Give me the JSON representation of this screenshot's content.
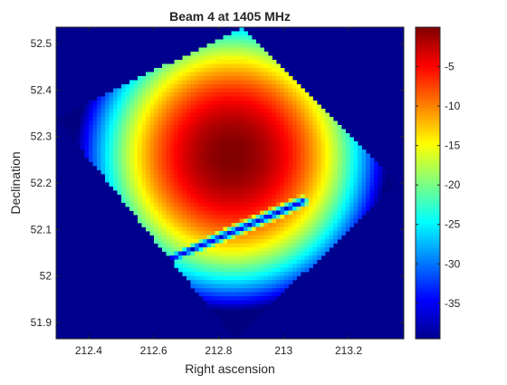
{
  "chart_data": {
    "type": "heatmap",
    "title": "Beam 4 at 1405 MHz",
    "xlabel": "Right ascension",
    "ylabel": "Declination",
    "xlim": [
      212.3,
      213.37
    ],
    "ylim": [
      51.865,
      52.535
    ],
    "x_ticks": [
      212.4,
      212.6,
      212.8,
      213,
      213.2
    ],
    "x_tick_labels": [
      "212.4",
      "212.6",
      "212.8",
      "213",
      "213.2"
    ],
    "y_ticks": [
      51.9,
      52,
      52.1,
      52.2,
      52.3,
      52.4,
      52.5
    ],
    "y_tick_labels": [
      "51.9",
      "52",
      "52.1",
      "52.2",
      "52.3",
      "52.4",
      "52.5"
    ],
    "colorbar": {
      "colormap": "jet",
      "range": [
        -39.5,
        0
      ],
      "ticks": [
        -5,
        -10,
        -15,
        -20,
        -25,
        -30,
        -35
      ],
      "tick_labels": [
        "-5",
        "-10",
        "-15",
        "-20",
        "-25",
        "-30",
        "-35"
      ]
    },
    "background_color": "#00008f",
    "beam_peak": {
      "ra": 212.84,
      "dec": 52.26,
      "value": 0
    },
    "footprint_corners": [
      {
        "ra": 212.3,
        "dec": 52.34
      },
      {
        "ra": 212.87,
        "dec": 52.532
      },
      {
        "ra": 213.35,
        "dec": 52.2
      },
      {
        "ra": 212.85,
        "dec": 51.865
      }
    ],
    "null_feature": {
      "ra_start": 212.53,
      "dec_start": 52.0,
      "ra_end": 213.06,
      "dec_end": 52.16,
      "value": -37
    }
  }
}
